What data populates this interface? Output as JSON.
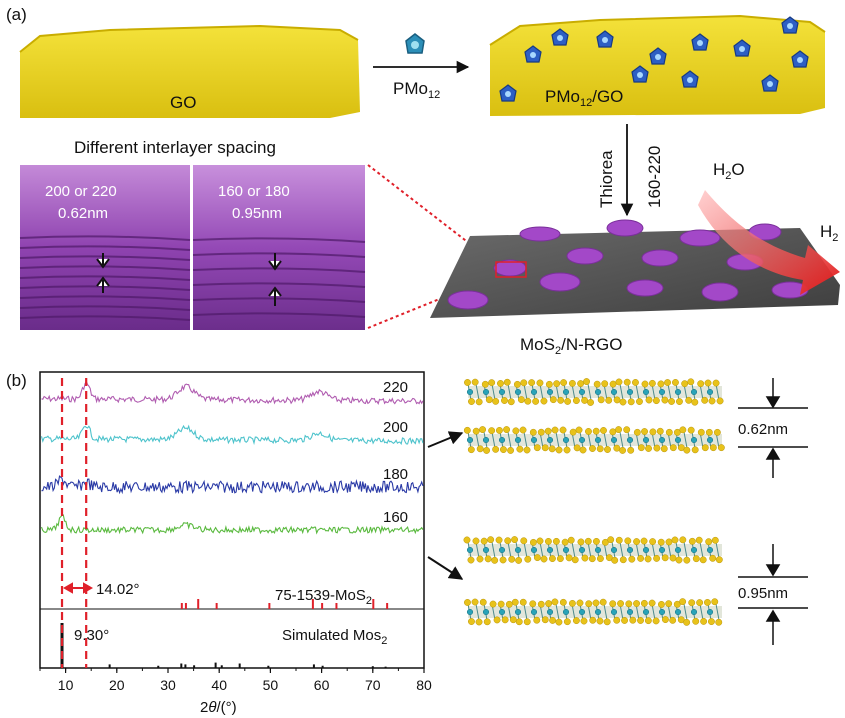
{
  "panel_a": {
    "label": "(a)",
    "go_label": "GO",
    "pmo12_label": "PMo",
    "pmo12_sub": "12",
    "pmo12go_label_pre": "PMo",
    "pmo12go_label_sub": "12",
    "pmo12go_label_post": "/GO",
    "thiorea_label": "Thiorea",
    "temp_range_label": "160-220",
    "h2o_label_pre": "H",
    "h2o_label_sub": "2",
    "h2o_label_post": "O",
    "h2_label_pre": "H",
    "h2_label_sub": "2",
    "interlayer_title": "Different interlayer spacing",
    "left_block_temp": "200 or 220",
    "left_block_spacing": "0.62nm",
    "right_block_temp": "160 or 180",
    "right_block_spacing": "0.95nm",
    "mos2_label_pre": "MoS",
    "mos2_label_sub": "2",
    "mos2_label_post": "/N-RGO"
  },
  "panel_b": {
    "label": "(b)",
    "spacing_top": "0.62nm",
    "spacing_bottom": "0.95nm"
  },
  "chart_data": {
    "type": "line",
    "xlabel_pre": "2",
    "xlabel_theta": "θ",
    "xlabel_post": "/(°)",
    "xlim": [
      5,
      80
    ],
    "xticks": [
      10,
      20,
      30,
      40,
      50,
      60,
      70,
      80
    ],
    "series": [
      {
        "name": "220",
        "color": "#b05cb0",
        "peaks": [
          [
            14.02,
            1.0
          ],
          [
            33.5,
            0.8
          ],
          [
            59.5,
            0.55
          ]
        ]
      },
      {
        "name": "200",
        "color": "#4ec3cc",
        "peaks": [
          [
            14.02,
            0.9
          ],
          [
            33.5,
            0.7
          ],
          [
            59.5,
            0.45
          ]
        ]
      },
      {
        "name": "180",
        "color": "#2a3aa6",
        "peaks": [
          [
            9.3,
            0.5
          ],
          [
            14.02,
            0.3
          ]
        ]
      },
      {
        "name": "160",
        "color": "#59b93e",
        "peaks": [
          [
            9.3,
            0.8
          ],
          [
            33.5,
            0.3
          ]
        ]
      }
    ],
    "reference_label_pre": "75-1539-MoS",
    "reference_label_sub": "2",
    "reference_lines": [
      14.02,
      32.7,
      33.5,
      35.9,
      39.5,
      49.8,
      58.3,
      60.1,
      62.9,
      70.1,
      72.8
    ],
    "simulated_label_pre": "Simulated Mos",
    "simulated_label_sub": "2",
    "simulated_lines": [
      [
        9.3,
        1.0
      ],
      [
        18.6,
        0.08
      ],
      [
        28.1,
        0.05
      ],
      [
        32.6,
        0.1
      ],
      [
        33.4,
        0.08
      ],
      [
        35.1,
        0.06
      ],
      [
        39.3,
        0.12
      ],
      [
        40.5,
        0.06
      ],
      [
        44.0,
        0.1
      ],
      [
        49.6,
        0.05
      ],
      [
        58.5,
        0.08
      ],
      [
        60.2,
        0.05
      ],
      [
        70.0,
        0.04
      ],
      [
        72.5,
        0.03
      ]
    ],
    "annotation_1": "14.02°",
    "annotation_2": "9.30°",
    "dashed_lines": [
      9.3,
      14.02
    ]
  },
  "colors": {
    "go_yellow": "#f2dc2a",
    "purple": "#8a3aa8",
    "dark_sheet": "#505050",
    "red": "#e0202a"
  }
}
